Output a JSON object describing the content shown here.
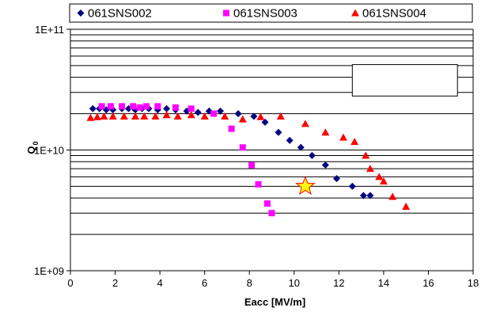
{
  "chart_data": {
    "type": "scatter",
    "title": "",
    "xlabel": "Eacc [MV/m]",
    "ylabel_main": "Q",
    "ylabel_sub": "0",
    "xlim": [
      0,
      18
    ],
    "ylim": [
      1000000000,
      100000000000
    ],
    "yscale": "log",
    "grid": "horizontal",
    "legend_position": "top",
    "x_ticks": [
      0,
      2,
      4,
      6,
      8,
      10,
      12,
      14,
      16,
      18
    ],
    "x_tick_labels": [
      "0",
      "2",
      "4",
      "6",
      "8",
      "10",
      "12",
      "14",
      "16",
      "18"
    ],
    "y_ticks": [
      1000000000,
      10000000000,
      100000000000
    ],
    "y_tick_labels": [
      "1E+09",
      "1E+10",
      "1E+11"
    ],
    "series": [
      {
        "name": "061SNS002",
        "marker": "diamond",
        "color": "#000080",
        "points": [
          [
            1.0,
            22000000000
          ],
          [
            1.3,
            22000000000
          ],
          [
            1.6,
            21500000000
          ],
          [
            1.9,
            21500000000
          ],
          [
            2.3,
            22000000000
          ],
          [
            2.6,
            22000000000
          ],
          [
            2.9,
            21500000000
          ],
          [
            3.2,
            22000000000
          ],
          [
            3.5,
            22000000000
          ],
          [
            3.9,
            21500000000
          ],
          [
            4.3,
            22000000000
          ],
          [
            4.7,
            21500000000
          ],
          [
            5.2,
            21000000000
          ],
          [
            5.7,
            20500000000
          ],
          [
            6.2,
            21000000000
          ],
          [
            6.7,
            21000000000
          ],
          [
            7.5,
            20000000000
          ],
          [
            8.2,
            19000000000
          ],
          [
            8.7,
            17000000000
          ],
          [
            9.3,
            14000000000
          ],
          [
            9.8,
            12000000000
          ],
          [
            10.3,
            10500000000
          ],
          [
            10.8,
            9000000000
          ],
          [
            11.4,
            7500000000
          ],
          [
            11.9,
            5800000000
          ],
          [
            12.6,
            5000000000
          ],
          [
            13.1,
            4200000000
          ],
          [
            13.4,
            4200000000
          ]
        ]
      },
      {
        "name": "061SNS003",
        "marker": "square",
        "color": "#FF00FF",
        "points": [
          [
            1.4,
            23000000000
          ],
          [
            1.8,
            23000000000
          ],
          [
            2.3,
            23000000000
          ],
          [
            2.8,
            23000000000
          ],
          [
            3.1,
            22500000000
          ],
          [
            3.4,
            23000000000
          ],
          [
            3.9,
            23000000000
          ],
          [
            4.7,
            22500000000
          ],
          [
            5.4,
            22000000000
          ],
          [
            6.4,
            20000000000
          ],
          [
            7.2,
            15000000000
          ],
          [
            7.7,
            10500000000
          ],
          [
            8.1,
            7500000000
          ],
          [
            8.4,
            5200000000
          ],
          [
            8.8,
            3600000000
          ],
          [
            9.0,
            3000000000
          ]
        ]
      },
      {
        "name": "061SNS004",
        "marker": "triangle",
        "color": "#FF0000",
        "points": [
          [
            0.9,
            18500000000
          ],
          [
            1.2,
            18800000000
          ],
          [
            1.5,
            19000000000
          ],
          [
            1.9,
            19000000000
          ],
          [
            2.4,
            19000000000
          ],
          [
            2.9,
            19000000000
          ],
          [
            3.3,
            19000000000
          ],
          [
            3.8,
            19000000000
          ],
          [
            4.3,
            19500000000
          ],
          [
            4.8,
            19000000000
          ],
          [
            5.4,
            19500000000
          ],
          [
            6.0,
            19000000000
          ],
          [
            6.9,
            19000000000
          ],
          [
            7.7,
            18000000000
          ],
          [
            8.5,
            18800000000
          ],
          [
            9.4,
            19000000000
          ],
          [
            10.5,
            16500000000
          ],
          [
            11.4,
            14000000000
          ],
          [
            12.2,
            12700000000
          ],
          [
            12.7,
            11700000000
          ],
          [
            13.2,
            9000000000
          ],
          [
            13.4,
            7000000000
          ],
          [
            13.8,
            6000000000
          ],
          [
            14.0,
            5500000000
          ],
          [
            14.4,
            4100000000
          ],
          [
            15.0,
            3400000000
          ]
        ]
      }
    ],
    "annotations": [
      {
        "type": "star",
        "x": 10.5,
        "y": 5000000000,
        "fill": "#FFFF00",
        "stroke": "#FF0000"
      },
      {
        "type": "empty-box",
        "x0": 12.6,
        "x1": 17.3,
        "y0": 28000000000,
        "y1": 51000000000
      }
    ]
  }
}
